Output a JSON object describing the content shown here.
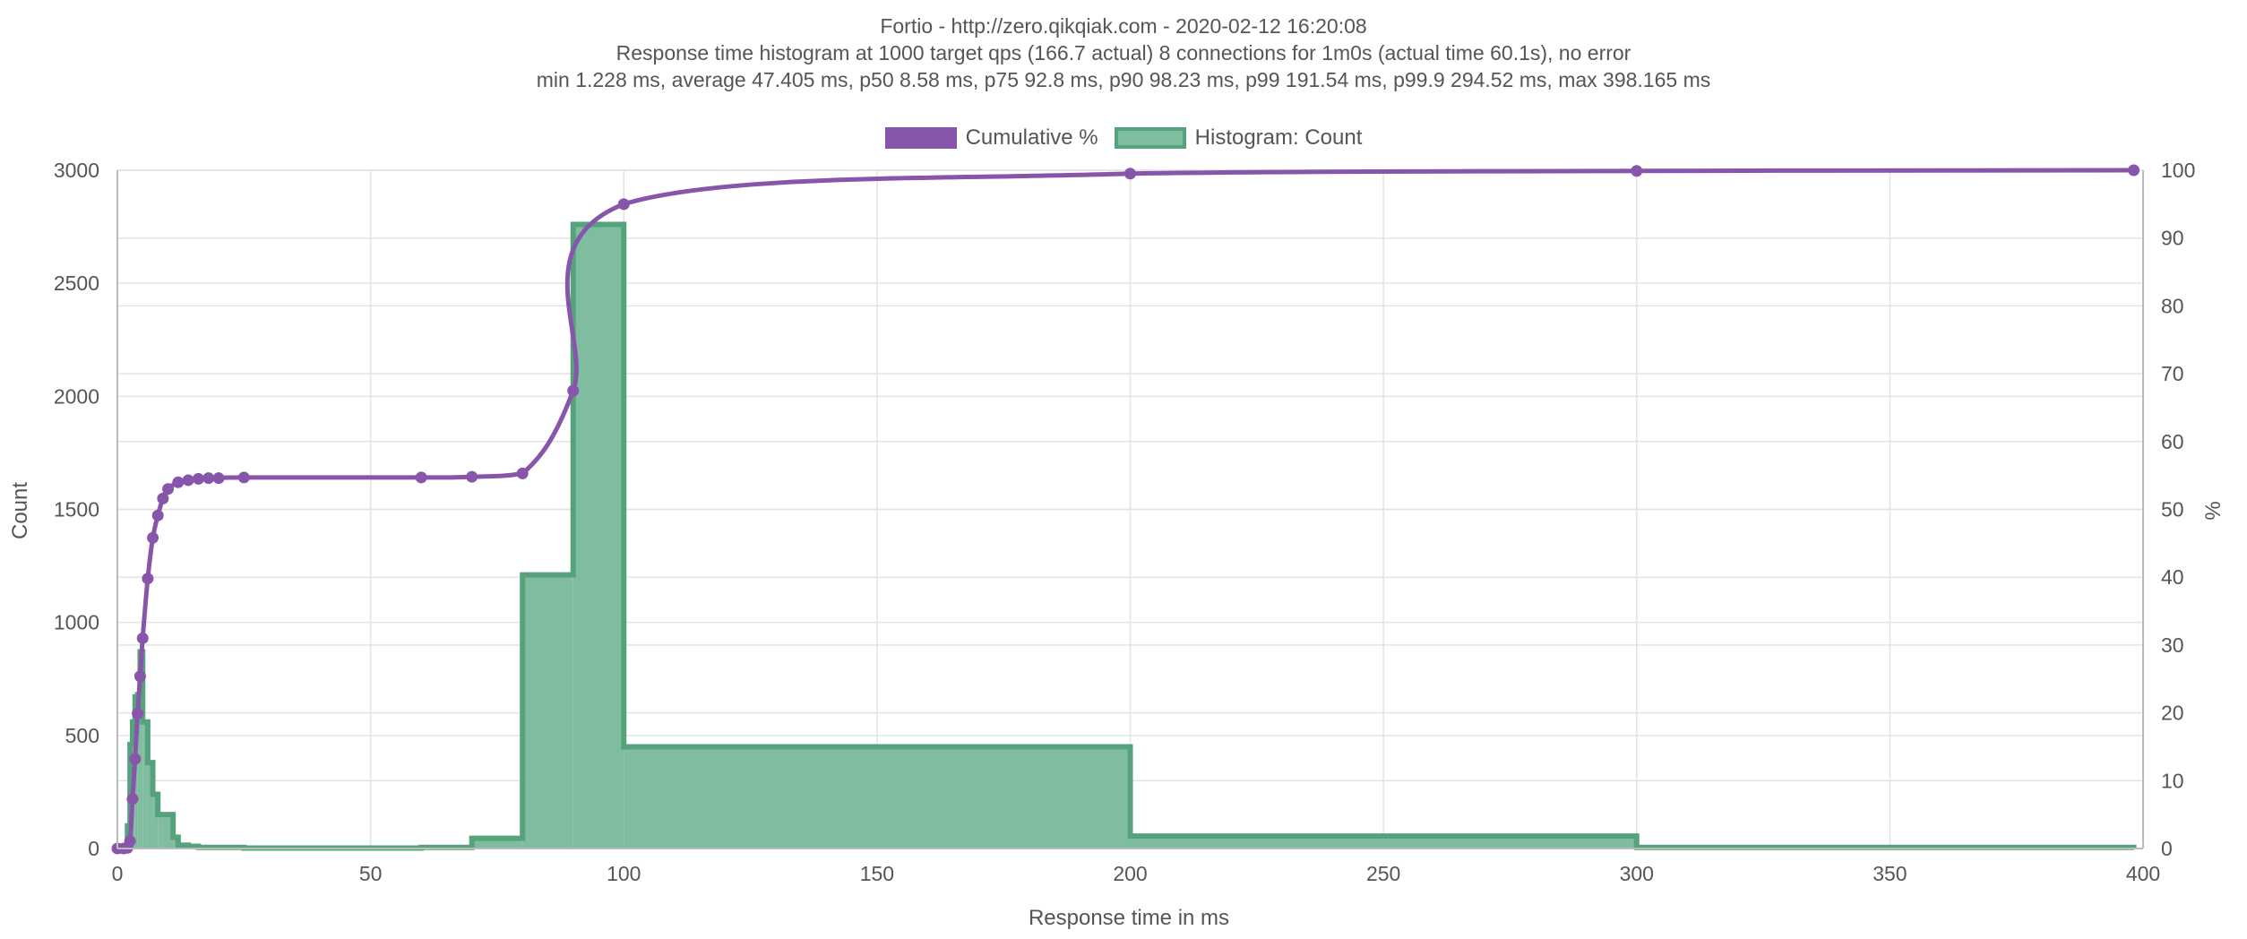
{
  "header": {
    "title": "Fortio - http://zero.qikqiak.com - 2020-02-12 16:20:08",
    "subtitle1": "Response time histogram at 1000 target qps (166.7 actual) 8 connections for 1m0s (actual time 60.1s), no error",
    "subtitle2": "min 1.228 ms, average 47.405 ms, p50 8.58 ms, p75 92.8 ms, p90 98.23 ms, p99 191.54 ms, p99.9 294.52 ms, max 398.165 ms"
  },
  "legend": {
    "cumulative_label": "Cumulative %",
    "histogram_label": "Histogram: Count"
  },
  "colors": {
    "cumulative": "#8755a9",
    "hist_fill": "#80bc9f",
    "hist_border": "#56a27c",
    "grid": "#e3e3e3",
    "text": "#555555"
  },
  "chart_data": {
    "type": "bar",
    "title": "Fortio - http://zero.qikqiak.com - 2020-02-12 16:20:08",
    "xlabel": "Response time in ms",
    "ylabel": "Count",
    "y2label": "%",
    "xlim": [
      0,
      400
    ],
    "ylim": [
      0,
      3000
    ],
    "y2lim": [
      0,
      100
    ],
    "xticks": [
      0,
      50,
      100,
      150,
      200,
      250,
      300,
      350,
      400
    ],
    "yticks": [
      0,
      500,
      1000,
      1500,
      2000,
      2500,
      3000
    ],
    "y2ticks": [
      0,
      10,
      20,
      30,
      40,
      50,
      60,
      70,
      80,
      90,
      100
    ],
    "grid": true,
    "legend_position": "top",
    "histogram": {
      "name": "Histogram: Count",
      "bins": [
        {
          "start": 1.228,
          "end": 2,
          "count": 10
        },
        {
          "start": 2,
          "end": 2.5,
          "count": 100
        },
        {
          "start": 2.5,
          "end": 3,
          "count": 460
        },
        {
          "start": 3,
          "end": 3.5,
          "count": 560
        },
        {
          "start": 3.5,
          "end": 4,
          "count": 670
        },
        {
          "start": 4,
          "end": 4.5,
          "count": 680
        },
        {
          "start": 4.5,
          "end": 5,
          "count": 870
        },
        {
          "start": 5,
          "end": 6,
          "count": 560
        },
        {
          "start": 6,
          "end": 7,
          "count": 380
        },
        {
          "start": 7,
          "end": 8,
          "count": 240
        },
        {
          "start": 8,
          "end": 9,
          "count": 150
        },
        {
          "start": 9,
          "end": 10,
          "count": 150
        },
        {
          "start": 10,
          "end": 11,
          "count": 150
        },
        {
          "start": 11,
          "end": 12,
          "count": 50
        },
        {
          "start": 12,
          "end": 14,
          "count": 15
        },
        {
          "start": 14,
          "end": 16,
          "count": 10
        },
        {
          "start": 16,
          "end": 18,
          "count": 5
        },
        {
          "start": 18,
          "end": 20,
          "count": 5
        },
        {
          "start": 20,
          "end": 25,
          "count": 5
        },
        {
          "start": 25,
          "end": 60,
          "count": 2
        },
        {
          "start": 60,
          "end": 70,
          "count": 5
        },
        {
          "start": 70,
          "end": 80,
          "count": 45
        },
        {
          "start": 80,
          "end": 90,
          "count": 1210
        },
        {
          "start": 90,
          "end": 100,
          "count": 2760
        },
        {
          "start": 100,
          "end": 200,
          "count": 450
        },
        {
          "start": 200,
          "end": 300,
          "count": 55
        },
        {
          "start": 300,
          "end": 398.165,
          "count": 5
        }
      ]
    },
    "series": [
      {
        "name": "Cumulative %",
        "x": [
          0,
          1.228,
          2,
          2.5,
          3,
          3.5,
          4,
          4.5,
          5,
          6,
          7,
          8,
          9,
          10,
          12,
          14,
          16,
          18,
          20,
          25,
          60,
          70,
          80,
          90,
          100,
          200,
          300,
          398.165
        ],
        "y": [
          0,
          0,
          0.1,
          1.1,
          7.3,
          13.2,
          19.9,
          25.4,
          31.0,
          39.8,
          45.8,
          49.1,
          51.6,
          53.0,
          54.0,
          54.3,
          54.5,
          54.6,
          54.6,
          54.7,
          54.7,
          54.8,
          55.3,
          67.5,
          95.0,
          99.5,
          99.9,
          100
        ]
      }
    ]
  }
}
